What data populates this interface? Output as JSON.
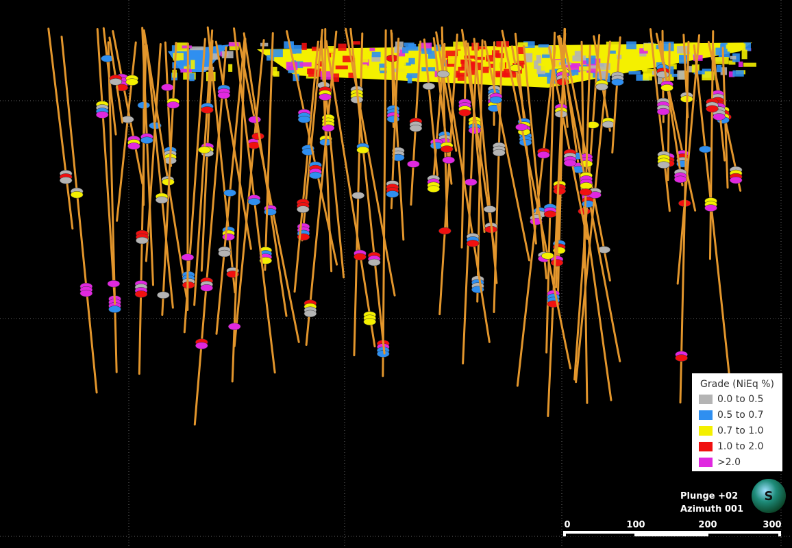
{
  "legend": {
    "title": "Grade (NiEq %)",
    "items": [
      {
        "label": "0.0 to 0.5",
        "color": "#b4b4b4"
      },
      {
        "label": "0.5 to 0.7",
        "color": "#2f8ff0"
      },
      {
        "label": "0.7 to 1.0",
        "color": "#f4f000"
      },
      {
        "label": "1.0 to 2.0",
        "color": "#f01010"
      },
      {
        "label": ">2.0",
        "color": "#e028e0"
      }
    ]
  },
  "view": {
    "plunge": "Plunge +02",
    "azimuth": "Azimuth 001"
  },
  "compass": {
    "label": "S"
  },
  "scale_bar": {
    "labels": [
      "0",
      "100",
      "200",
      "300"
    ]
  }
}
